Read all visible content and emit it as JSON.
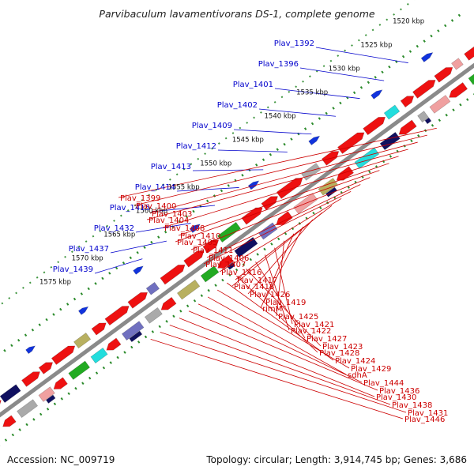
{
  "title": "Parvibaculum lavamentivorans DS-1, complete genome",
  "accession": "Accession: NC_009719",
  "summary": "Topology: circular; Length: 3,914,745 bp; Genes: 3,686",
  "kbp_ticks": [
    "1520 kbp",
    "1525 kbp",
    "1530 kbp",
    "1535 kbp",
    "1540 kbp",
    "1545 kbp",
    "1550 kbp",
    "1555 kbp",
    "1560 kbp",
    "1565 kbp",
    "1570 kbp",
    "1575 kbp"
  ],
  "forward_labels": [
    "Plav_1392",
    "Plav_1396",
    "Plav_1401",
    "Plav_1402",
    "Plav_1409",
    "Plav_1412",
    "Plav_1413",
    "Plav_1414",
    "Plav_1415",
    "Plav_1432",
    "Plav_1437",
    "Plav_1439"
  ],
  "reverse_labels": [
    "Plav_1399",
    "Plav_1400",
    "Plav_1403",
    "Plav_1404",
    "Plav_1408",
    "Plav_1410",
    "Plav_1405",
    "Plav_1411",
    "Plav_1406",
    "Plav_1407",
    "Plav_1416",
    "Plav_1417",
    "Plav_1418",
    "Plav_1426",
    "Plav_1419",
    "rimM",
    "Plav_1425",
    "Plav_1421",
    "Plav_1422",
    "Plav_1427",
    "Plav_1423",
    "Plav_1428",
    "Plav_1424",
    "Plav_1429",
    "sdhA",
    "Plav_1444",
    "Plav_1436",
    "Plav_1430",
    "Plav_1438",
    "Plav_1431",
    "Plav_1446"
  ],
  "colors": {
    "backbone": "#8a8a8a",
    "tick_dots": "#2a8a2a",
    "forward_label": "#0000cc",
    "reverse_label": "#cc0000",
    "gene_red": "#ee1111",
    "gene_blue": "#1133dd",
    "gene_cyan": "#22dddd",
    "gene_navy": "#101060",
    "gene_green": "#22aa22",
    "gene_gray": "#aaaaaa",
    "gene_pink": "#f0a0a0",
    "gene_olive": "#b8b060",
    "gene_violet": "#7070c0"
  }
}
